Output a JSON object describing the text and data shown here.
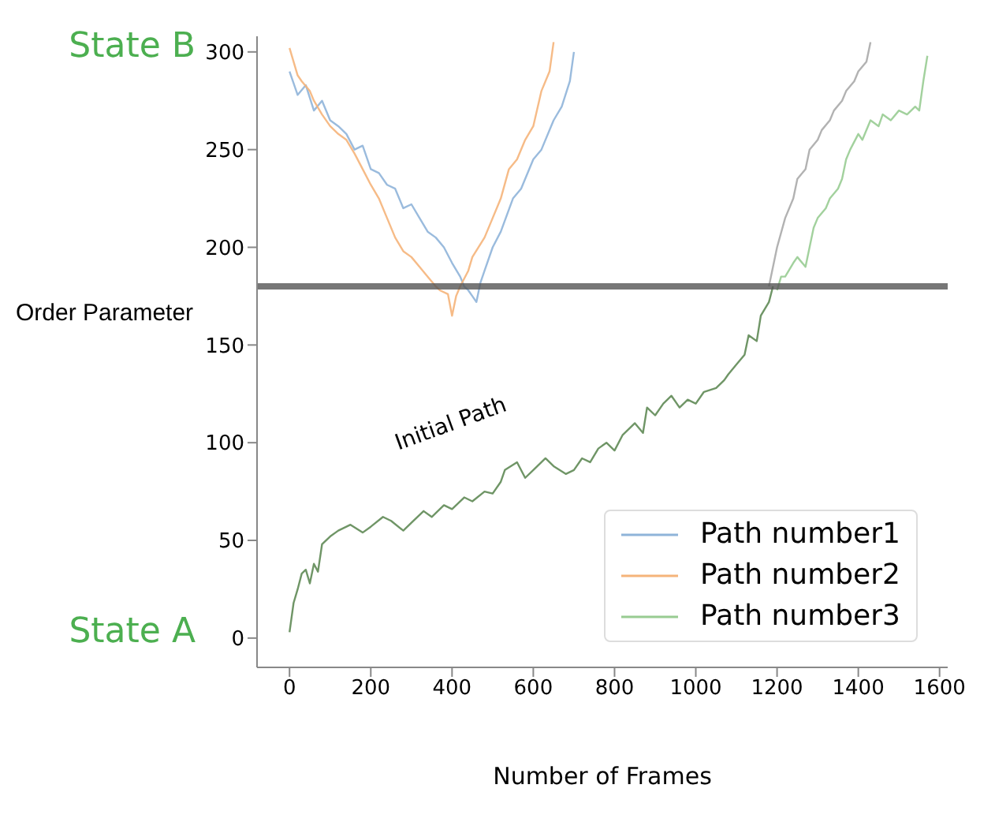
{
  "chart_data": {
    "type": "line",
    "xlabel": "Number of Frames",
    "ylabel": "Order Parameter",
    "xlim": [
      -80,
      1620
    ],
    "ylim": [
      -15,
      308
    ],
    "xticks": [
      0,
      200,
      400,
      600,
      800,
      1000,
      1200,
      1400,
      1600
    ],
    "yticks": [
      0,
      50,
      100,
      150,
      200,
      250,
      300
    ],
    "legend": "bottom right",
    "line_style": "solid",
    "marker": "none",
    "series": [
      {
        "color": "#5f8a55",
        "x": [
          0,
          10,
          20,
          30,
          40,
          50,
          60,
          70,
          80,
          100,
          120,
          150,
          180,
          200,
          230,
          250,
          280,
          300,
          330,
          350,
          380,
          400,
          430,
          450,
          480,
          500,
          520,
          530,
          560,
          580,
          600,
          630,
          650,
          680,
          700,
          720,
          740,
          760,
          780,
          800,
          820,
          850,
          870,
          880,
          900,
          920,
          940,
          960,
          980,
          1000,
          1020,
          1050,
          1070,
          1080,
          1100,
          1120,
          1130,
          1150,
          1160,
          1180,
          1190
        ],
        "values": [
          3,
          18,
          25,
          33,
          35,
          28,
          38,
          34,
          48,
          52,
          55,
          58,
          54,
          57,
          62,
          60,
          55,
          59,
          65,
          62,
          68,
          66,
          72,
          70,
          75,
          74,
          80,
          86,
          90,
          82,
          86,
          92,
          88,
          84,
          86,
          92,
          90,
          97,
          100,
          96,
          104,
          110,
          105,
          118,
          114,
          120,
          124,
          118,
          122,
          120,
          126,
          128,
          132,
          135,
          140,
          145,
          155,
          152,
          165,
          172,
          180
        ]
      },
      {
        "name": "Path number1",
        "color": "#8fb4d9",
        "x": [
          0,
          20,
          40,
          60,
          80,
          100,
          120,
          140,
          160,
          180,
          200,
          220,
          240,
          260,
          280,
          300,
          320,
          340,
          360,
          380,
          400,
          420,
          430,
          440,
          450,
          460,
          470,
          480,
          500,
          520,
          550,
          570,
          600,
          620,
          650,
          670,
          690,
          700
        ],
        "values": [
          290,
          278,
          283,
          270,
          275,
          265,
          262,
          258,
          250,
          252,
          240,
          238,
          232,
          230,
          220,
          222,
          215,
          208,
          205,
          200,
          192,
          185,
          180,
          178,
          175,
          172,
          182,
          188,
          200,
          208,
          225,
          230,
          245,
          250,
          265,
          272,
          285,
          300
        ]
      },
      {
        "name": "Path number2",
        "color": "#f5b47a",
        "x": [
          0,
          20,
          30,
          50,
          60,
          80,
          100,
          120,
          140,
          160,
          180,
          200,
          220,
          240,
          260,
          280,
          300,
          320,
          340,
          360,
          370,
          390,
          400,
          410,
          420,
          440,
          450,
          480,
          500,
          520,
          540,
          560,
          580,
          600,
          620,
          640,
          650
        ],
        "values": [
          302,
          288,
          285,
          280,
          275,
          268,
          262,
          258,
          255,
          248,
          240,
          232,
          225,
          215,
          205,
          198,
          195,
          190,
          185,
          180,
          178,
          176,
          165,
          175,
          180,
          188,
          195,
          205,
          215,
          225,
          240,
          245,
          255,
          262,
          280,
          290,
          305
        ]
      },
      {
        "color": "#aaaaaa",
        "x": [
          1180,
          1200,
          1220,
          1240,
          1250,
          1270,
          1280,
          1300,
          1310,
          1330,
          1340,
          1360,
          1370,
          1390,
          1400,
          1420,
          1430
        ],
        "values": [
          180,
          200,
          215,
          225,
          235,
          240,
          250,
          255,
          260,
          265,
          270,
          275,
          280,
          285,
          290,
          295,
          305
        ]
      },
      {
        "name": "Path number3",
        "color": "#98cc92",
        "x": [
          1200,
          1210,
          1220,
          1240,
          1250,
          1270,
          1280,
          1290,
          1300,
          1320,
          1330,
          1350,
          1360,
          1370,
          1380,
          1400,
          1410,
          1430,
          1450,
          1460,
          1480,
          1500,
          1520,
          1540,
          1550,
          1560,
          1570
        ],
        "values": [
          178,
          185,
          185,
          192,
          195,
          190,
          200,
          210,
          215,
          220,
          225,
          230,
          235,
          245,
          250,
          258,
          255,
          265,
          262,
          268,
          265,
          270,
          268,
          272,
          270,
          285,
          298
        ]
      }
    ],
    "ref_lines": [
      {
        "axis": "y",
        "value": 180,
        "color": "#555555"
      }
    ],
    "annotations": [
      "State B",
      "State A",
      "Initial Path"
    ]
  }
}
